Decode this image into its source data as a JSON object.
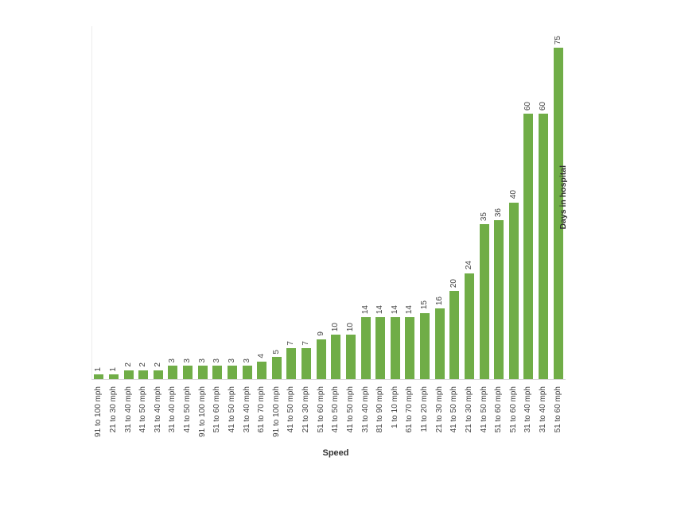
{
  "chart_data": {
    "type": "bar",
    "title": "",
    "xlabel": "Speed",
    "ylabel": "Days in hospital",
    "categories": [
      "91 to 100 mph",
      "21 to 30 mph",
      "31 to 40 mph",
      "41 to 50 mph",
      "31 to 40 mph",
      "31 to 40 mph",
      "41 to 50 mph",
      "91 to 100 mph",
      "51 to 60 mph",
      "41 to 50 mph",
      "31 to 40 mph",
      "61 to 70 mph",
      "91 to 100 mph",
      "41 to 50 mph",
      "21 to 30 mph",
      "51 to 60 mph",
      "41 to 50 mph",
      "41 to 50 mph",
      "31 to 40 mph",
      "81 to 90 mph",
      "1 to 10 mph",
      "61 to 70 mph",
      "11 to 20 mph",
      "21 to 30 mph",
      "41 to 50 mph",
      "21 to 30 mph",
      "41 to 50 mph",
      "51 to 60 mph",
      "51 to 60 mph",
      "31 to 40 mph",
      "31 to 40 mph",
      "51 to 60 mph"
    ],
    "values": [
      1,
      1,
      2,
      2,
      2,
      3,
      3,
      3,
      3,
      3,
      3,
      4,
      5,
      7,
      7,
      9,
      10,
      10,
      14,
      14,
      14,
      14,
      15,
      16,
      20,
      24,
      35,
      36,
      40,
      60,
      60,
      75
    ],
    "ylim": [
      0,
      75
    ],
    "grid": false,
    "legend_position": "none",
    "value_labels_shown": true,
    "label_rotation_degrees": 90
  },
  "colors": {
    "bar": "#70AD47",
    "axis_line": "#D9D9D9",
    "secondary_axis_line": "#ECECEC",
    "tick_label_text": "#404040",
    "axis_title_text": "#333333",
    "background": "#FFFFFF"
  }
}
